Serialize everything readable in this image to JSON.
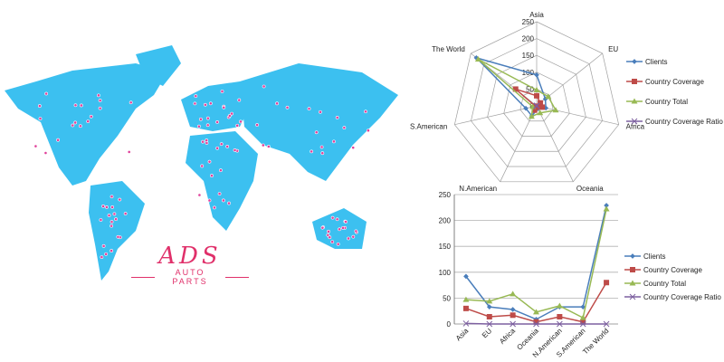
{
  "logo": {
    "brand": "ADS",
    "tagline": "AUTO PARTS"
  },
  "colors": {
    "map": "#3cc0f0",
    "dot": "#e0409a",
    "clients": "#4a7ebb",
    "coverage": "#be4b48",
    "total": "#98b954",
    "ratio": "#7d60a0",
    "grid": "#a0a0a0"
  },
  "chart_data": [
    {
      "type": "radar",
      "categories": [
        "Asia",
        "EU",
        "Africa",
        "Oceania",
        "N.American",
        "S.American",
        "The World"
      ],
      "ticks": [
        0,
        50,
        100,
        150,
        200,
        250
      ],
      "range": [
        0,
        250
      ],
      "legend": "right",
      "series": [
        {
          "name": "Clients",
          "values": [
            92,
            33,
            28,
            9,
            33,
            33,
            229
          ]
        },
        {
          "name": "Country Coverage",
          "values": [
            30,
            14,
            17,
            4,
            14,
            4,
            80
          ]
        },
        {
          "name": "Country Total",
          "values": [
            47,
            44,
            58,
            23,
            35,
            12,
            222
          ]
        },
        {
          "name": "Country Coverage Ratio",
          "values": [
            1,
            0,
            0,
            0,
            0,
            0,
            0
          ]
        }
      ]
    },
    {
      "type": "line",
      "categories": [
        "Asia",
        "EU",
        "Africa",
        "Oceania",
        "N.American",
        "S.American",
        "The World"
      ],
      "ticks": [
        0,
        50,
        100,
        150,
        200,
        250
      ],
      "ylim": [
        0,
        250
      ],
      "legend": "right",
      "grid": true,
      "series": [
        {
          "name": "Clients",
          "values": [
            92,
            33,
            28,
            9,
            33,
            33,
            229
          ]
        },
        {
          "name": "Country Coverage",
          "values": [
            30,
            14,
            17,
            4,
            14,
            4,
            80
          ]
        },
        {
          "name": "Country Total",
          "values": [
            47,
            44,
            58,
            23,
            35,
            12,
            222
          ]
        },
        {
          "name": "Country Coverage Ratio",
          "values": [
            1,
            0,
            0,
            0,
            0,
            0,
            0
          ]
        }
      ]
    }
  ]
}
